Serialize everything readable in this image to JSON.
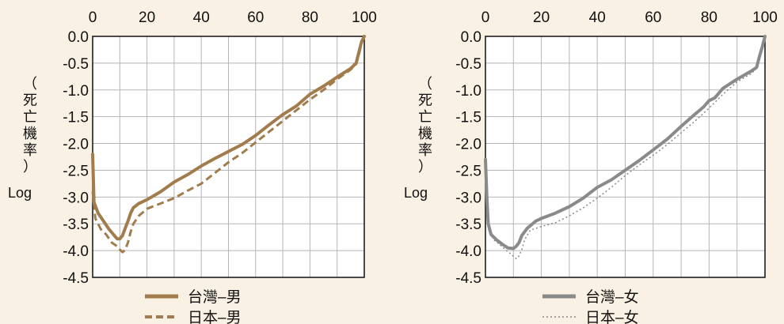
{
  "chart_data": [
    {
      "type": "line",
      "xlim": [
        0,
        100
      ],
      "ylim": [
        -4.5,
        0.0
      ],
      "x_ticks": [
        "0",
        "20",
        "40",
        "60",
        "80",
        "100"
      ],
      "y_ticks": [
        "0.0",
        "-0.5",
        "-1.0",
        "-1.5",
        "-2.0",
        "-2.5",
        "-3.0",
        "-3.5",
        "-4.0",
        "-4.5"
      ],
      "ylabel_vertical": "（死亡機率）",
      "ylabel": "Log",
      "grid": true,
      "legend_position": "bottom",
      "series": [
        {
          "name": "台灣–男",
          "color": "#a27c4d",
          "style": "solid",
          "points": [
            [
              0,
              -2.2
            ],
            [
              0.5,
              -3.1
            ],
            [
              2,
              -3.3
            ],
            [
              4,
              -3.45
            ],
            [
              6,
              -3.6
            ],
            [
              8,
              -3.72
            ],
            [
              9,
              -3.78
            ],
            [
              10,
              -3.78
            ],
            [
              11,
              -3.72
            ],
            [
              12,
              -3.58
            ],
            [
              13,
              -3.45
            ],
            [
              14,
              -3.3
            ],
            [
              15,
              -3.2
            ],
            [
              17,
              -3.12
            ],
            [
              20,
              -3.05
            ],
            [
              25,
              -2.9
            ],
            [
              30,
              -2.72
            ],
            [
              35,
              -2.58
            ],
            [
              40,
              -2.42
            ],
            [
              45,
              -2.28
            ],
            [
              50,
              -2.15
            ],
            [
              55,
              -2.02
            ],
            [
              60,
              -1.85
            ],
            [
              65,
              -1.65
            ],
            [
              70,
              -1.46
            ],
            [
              75,
              -1.3
            ],
            [
              80,
              -1.08
            ],
            [
              85,
              -0.93
            ],
            [
              90,
              -0.76
            ],
            [
              95,
              -0.6
            ],
            [
              97,
              -0.5
            ],
            [
              98,
              -0.3
            ],
            [
              99,
              -0.1
            ],
            [
              100,
              0.0
            ]
          ]
        },
        {
          "name": "日本–男",
          "color": "#a27c4d",
          "style": "dashed",
          "points": [
            [
              0,
              -2.9
            ],
            [
              1,
              -3.4
            ],
            [
              3,
              -3.6
            ],
            [
              5,
              -3.7
            ],
            [
              7,
              -3.85
            ],
            [
              9,
              -3.92
            ],
            [
              10,
              -3.98
            ],
            [
              11,
              -4.03
            ],
            [
              12,
              -3.98
            ],
            [
              13,
              -3.85
            ],
            [
              14,
              -3.65
            ],
            [
              15,
              -3.5
            ],
            [
              17,
              -3.35
            ],
            [
              20,
              -3.22
            ],
            [
              25,
              -3.12
            ],
            [
              30,
              -3.02
            ],
            [
              35,
              -2.88
            ],
            [
              40,
              -2.75
            ],
            [
              45,
              -2.55
            ],
            [
              50,
              -2.35
            ],
            [
              55,
              -2.18
            ],
            [
              60,
              -1.98
            ],
            [
              65,
              -1.78
            ],
            [
              70,
              -1.58
            ],
            [
              75,
              -1.38
            ],
            [
              80,
              -1.18
            ],
            [
              85,
              -1.0
            ],
            [
              90,
              -0.8
            ],
            [
              95,
              -0.62
            ],
            [
              97,
              -0.52
            ],
            [
              98,
              -0.35
            ],
            [
              99,
              -0.12
            ],
            [
              100,
              0.0
            ]
          ]
        }
      ]
    },
    {
      "type": "line",
      "xlim": [
        0,
        100
      ],
      "ylim": [
        -4.5,
        0.0
      ],
      "x_ticks": [
        "0",
        "20",
        "40",
        "60",
        "80",
        "100"
      ],
      "y_ticks": [
        "0.0",
        "-0.5",
        "-1.0",
        "-1.5",
        "-2.0",
        "-2.5",
        "-3.0",
        "-3.5",
        "-4.0",
        "-4.5"
      ],
      "ylabel_vertical": "（死亡機率）",
      "ylabel": "Log",
      "grid": true,
      "legend_position": "bottom",
      "series": [
        {
          "name": "台灣–女",
          "color": "#8a8a8a",
          "style": "solid",
          "points": [
            [
              0,
              -2.3
            ],
            [
              0.5,
              -3.0
            ],
            [
              1,
              -3.5
            ],
            [
              2,
              -3.7
            ],
            [
              4,
              -3.8
            ],
            [
              6,
              -3.88
            ],
            [
              8,
              -3.95
            ],
            [
              10,
              -3.96
            ],
            [
              11,
              -3.92
            ],
            [
              12,
              -3.85
            ],
            [
              13,
              -3.72
            ],
            [
              15,
              -3.58
            ],
            [
              18,
              -3.45
            ],
            [
              20,
              -3.4
            ],
            [
              25,
              -3.3
            ],
            [
              30,
              -3.18
            ],
            [
              35,
              -3.02
            ],
            [
              40,
              -2.82
            ],
            [
              45,
              -2.68
            ],
            [
              50,
              -2.5
            ],
            [
              55,
              -2.32
            ],
            [
              60,
              -2.12
            ],
            [
              65,
              -1.92
            ],
            [
              70,
              -1.68
            ],
            [
              75,
              -1.45
            ],
            [
              78,
              -1.32
            ],
            [
              80,
              -1.2
            ],
            [
              82,
              -1.15
            ],
            [
              85,
              -0.97
            ],
            [
              90,
              -0.8
            ],
            [
              95,
              -0.65
            ],
            [
              97,
              -0.58
            ],
            [
              98,
              -0.38
            ],
            [
              99,
              -0.2
            ],
            [
              100,
              0.0
            ]
          ]
        },
        {
          "name": "日本–女",
          "color": "#8a8a8a",
          "style": "dotted",
          "points": [
            [
              0,
              -2.8
            ],
            [
              1,
              -3.6
            ],
            [
              3,
              -3.8
            ],
            [
              5,
              -3.88
            ],
            [
              7,
              -3.98
            ],
            [
              9,
              -4.06
            ],
            [
              11,
              -4.15
            ],
            [
              12,
              -4.1
            ],
            [
              13,
              -3.98
            ],
            [
              14,
              -3.8
            ],
            [
              16,
              -3.62
            ],
            [
              20,
              -3.55
            ],
            [
              25,
              -3.48
            ],
            [
              30,
              -3.35
            ],
            [
              35,
              -3.2
            ],
            [
              40,
              -3.02
            ],
            [
              45,
              -2.82
            ],
            [
              50,
              -2.6
            ],
            [
              55,
              -2.4
            ],
            [
              60,
              -2.22
            ],
            [
              65,
              -2.02
            ],
            [
              70,
              -1.8
            ],
            [
              75,
              -1.58
            ],
            [
              80,
              -1.34
            ],
            [
              85,
              -1.08
            ],
            [
              90,
              -0.85
            ],
            [
              95,
              -0.7
            ],
            [
              97,
              -0.6
            ],
            [
              98,
              -0.4
            ],
            [
              99,
              -0.2
            ],
            [
              100,
              0.0
            ]
          ]
        }
      ]
    }
  ]
}
